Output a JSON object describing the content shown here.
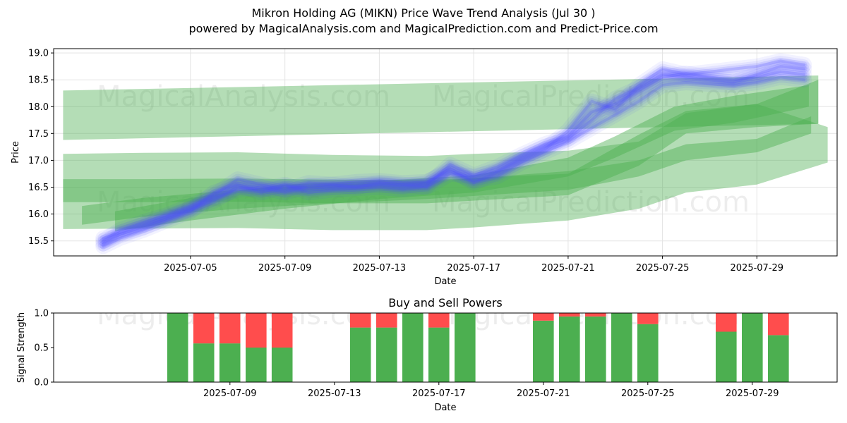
{
  "title_line1": "Mikron Holding AG (MIKN) Price Wave Trend Analysis (Jul 30 )",
  "title_line2": "powered by MagicalAnalysis.com and MagicalPrediction.com and Predict-Price.com",
  "watermarks": [
    "MagicalAnalysis.com",
    "MagicalPrediction.com"
  ],
  "colors": {
    "price": "#4d4dff",
    "band": "#4caf50",
    "buy": "#4caf50",
    "sell": "#ff4d4d"
  },
  "chart_data": [
    {
      "type": "line",
      "title": "",
      "xlabel": "Date",
      "ylabel": "Price",
      "x_range_days": [
        -1.8,
        31.4
      ],
      "ylim": [
        15.22,
        19.08
      ],
      "y_ticks": [
        15.5,
        16.0,
        16.5,
        17.0,
        17.5,
        18.0,
        18.5,
        19.0
      ],
      "y_tick_labels": [
        "15.5",
        "16.0",
        "16.5",
        "17.0",
        "17.5",
        "18.0",
        "18.5",
        "19.0"
      ],
      "x_ticks_day": [
        4,
        8,
        12,
        16,
        20,
        24,
        28
      ],
      "x_tick_labels": [
        "2025-07-05",
        "2025-07-09",
        "2025-07-13",
        "2025-07-17",
        "2025-07-21",
        "2025-07-25",
        "2025-07-29"
      ],
      "grid": true,
      "bands": [
        {
          "name": "wide-upper",
          "days": [
            -1.4,
            30.6
          ],
          "upper": [
            18.3,
            18.58
          ],
          "lower": [
            17.38,
            17.68
          ]
        },
        {
          "name": "wide-lower",
          "days": [
            -1.4,
            2,
            6,
            10,
            14,
            16,
            20,
            23,
            25,
            28,
            31.0
          ],
          "upper": [
            17.12,
            17.14,
            17.15,
            17.1,
            17.08,
            17.12,
            17.18,
            17.35,
            17.88,
            18.05,
            17.62
          ],
          "lower": [
            15.72,
            15.73,
            15.74,
            15.7,
            15.7,
            15.75,
            15.88,
            16.1,
            16.4,
            16.55,
            16.96
          ]
        },
        {
          "name": "mid-green",
          "days": [
            -1.4,
            2,
            6,
            10,
            14,
            20,
            23,
            25,
            28,
            30.6
          ],
          "upper": [
            16.65,
            16.65,
            16.66,
            16.64,
            16.63,
            16.75,
            17.48,
            17.92,
            18.05,
            18.5
          ],
          "lower": [
            16.22,
            16.22,
            16.23,
            16.2,
            16.2,
            16.35,
            16.9,
            17.5,
            17.62,
            17.68
          ]
        },
        {
          "name": "low-green",
          "days": [
            -0.6,
            2,
            6,
            10,
            14,
            20,
            23,
            25,
            28,
            30.3
          ],
          "upper": [
            16.15,
            16.3,
            16.45,
            16.55,
            16.6,
            16.8,
            17.0,
            17.3,
            17.4,
            17.82
          ],
          "lower": [
            15.8,
            15.95,
            16.1,
            16.2,
            16.28,
            16.45,
            16.7,
            17.0,
            17.15,
            17.5
          ]
        },
        {
          "name": "low-mid-green",
          "days": [
            0.8,
            4,
            8,
            12,
            16,
            20,
            22,
            24.5,
            27,
            30.2
          ],
          "upper": [
            16.05,
            16.3,
            16.55,
            16.62,
            16.72,
            17.05,
            17.45,
            18.0,
            18.2,
            18.4
          ],
          "lower": [
            15.68,
            15.88,
            16.1,
            16.28,
            16.4,
            16.7,
            17.05,
            17.55,
            17.7,
            18.0
          ]
        }
      ],
      "series": [
        {
          "name": "wave-a",
          "days": [
            0.3,
            1,
            2,
            3,
            4,
            5,
            6,
            7,
            8,
            9,
            10,
            11,
            12,
            13,
            14,
            15,
            16,
            17,
            18,
            19,
            20,
            21,
            22,
            23,
            24,
            25,
            26,
            27,
            28,
            29,
            30
          ],
          "values": [
            15.45,
            15.62,
            15.75,
            15.92,
            16.08,
            16.25,
            16.5,
            16.45,
            16.55,
            16.4,
            16.45,
            16.48,
            16.5,
            16.46,
            16.52,
            16.92,
            16.72,
            16.88,
            17.1,
            17.3,
            17.45,
            17.9,
            18.05,
            18.3,
            18.55,
            18.62,
            18.55,
            18.5,
            18.55,
            18.65,
            18.6
          ]
        },
        {
          "name": "wave-b",
          "days": [
            0.3,
            1,
            2,
            3,
            4,
            5,
            6,
            7,
            8,
            9,
            10,
            11,
            12,
            13,
            14,
            15,
            16,
            17,
            18,
            19,
            20,
            21,
            22,
            23,
            24,
            25,
            26,
            27,
            28,
            29,
            30
          ],
          "values": [
            15.5,
            15.7,
            15.85,
            15.98,
            16.15,
            16.35,
            16.65,
            16.55,
            16.45,
            16.58,
            16.55,
            16.6,
            16.62,
            16.58,
            16.6,
            16.8,
            16.62,
            16.7,
            16.95,
            17.15,
            17.35,
            17.6,
            17.85,
            18.1,
            18.4,
            18.45,
            18.42,
            18.4,
            18.45,
            18.55,
            18.5
          ]
        },
        {
          "name": "wave-c",
          "days": [
            0.3,
            1,
            2,
            3,
            4,
            5,
            6,
            7,
            8,
            9,
            10,
            11,
            12,
            13,
            14,
            15,
            16,
            17,
            18,
            19,
            20,
            21,
            22,
            23,
            24,
            25,
            26,
            27,
            28,
            29,
            30
          ],
          "values": [
            15.4,
            15.55,
            15.7,
            15.88,
            16.05,
            16.4,
            16.55,
            16.4,
            16.52,
            16.48,
            16.5,
            16.52,
            16.55,
            16.52,
            16.58,
            16.85,
            16.58,
            16.78,
            17.0,
            17.2,
            17.55,
            18.1,
            17.95,
            18.4,
            18.7,
            18.6,
            18.65,
            18.7,
            18.75,
            18.85,
            18.78
          ]
        },
        {
          "name": "wave-d",
          "days": [
            0.3,
            1,
            2,
            3,
            4,
            5,
            6,
            7,
            8,
            9,
            10,
            11,
            12,
            13,
            14,
            15,
            16,
            17,
            18,
            19,
            20,
            21,
            22,
            23,
            24,
            25,
            26,
            27,
            28,
            29,
            30
          ],
          "values": [
            15.55,
            15.65,
            15.8,
            15.95,
            16.1,
            16.3,
            16.45,
            16.5,
            16.4,
            16.52,
            16.55,
            16.5,
            16.58,
            16.55,
            16.5,
            16.75,
            16.7,
            16.8,
            17.05,
            17.25,
            17.4,
            17.75,
            18.15,
            18.35,
            18.6,
            18.55,
            18.5,
            18.45,
            18.6,
            18.75,
            18.7
          ]
        }
      ]
    },
    {
      "type": "bar",
      "title": "Buy and Sell Powers",
      "xlabel": "Date",
      "ylabel": "Signal Strength",
      "x_range_days": [
        2.25,
        32.25
      ],
      "ylim": [
        0,
        1.0
      ],
      "y_ticks": [
        0.0,
        0.5,
        1.0
      ],
      "y_tick_labels": [
        "0.0",
        "0.5",
        "1.0"
      ],
      "x_ticks_day": [
        9,
        13,
        17,
        21,
        25,
        29
      ],
      "x_tick_labels": [
        "2025-07-09",
        "2025-07-13",
        "2025-07-17",
        "2025-07-21",
        "2025-07-25",
        "2025-07-29"
      ],
      "bar_days": [
        7,
        8,
        9,
        10,
        11,
        14,
        15,
        16,
        17,
        18,
        21,
        22,
        23,
        24,
        25,
        28,
        29,
        30
      ],
      "series": [
        {
          "name": "Buy",
          "values": [
            1.0,
            0.56,
            0.56,
            0.5,
            0.5,
            0.79,
            0.79,
            1.0,
            0.79,
            1.0,
            0.89,
            0.95,
            0.95,
            1.0,
            0.84,
            0.73,
            1.0,
            0.68
          ]
        },
        {
          "name": "Sell",
          "values": [
            0.0,
            0.44,
            0.44,
            0.5,
            0.5,
            0.21,
            0.21,
            0.0,
            0.21,
            0.0,
            0.11,
            0.05,
            0.05,
            0.0,
            0.16,
            0.27,
            0.0,
            0.32
          ]
        }
      ]
    }
  ]
}
